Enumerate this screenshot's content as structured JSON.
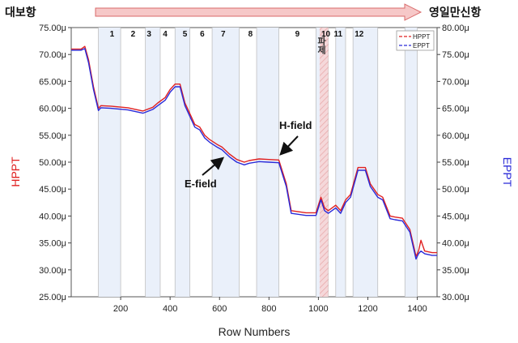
{
  "chart_data": {
    "type": "line",
    "xlabel": "Row Numbers",
    "ylabel_left": "HPPT",
    "ylabel_right": "EPPT",
    "xlim": [
      0,
      1480
    ],
    "x_ticks": [
      200,
      400,
      600,
      800,
      1000,
      1200,
      1400
    ],
    "ylim_left": [
      25,
      75
    ],
    "y_ticks_left": [
      "25.00μ",
      "30.00μ",
      "35.00μ",
      "40.00μ",
      "45.00μ",
      "50.00μ",
      "55.00μ",
      "60.00μ",
      "65.00μ",
      "70.00μ",
      "75.00μ"
    ],
    "ylim_right": [
      30,
      80
    ],
    "y_ticks_right": [
      "30.00μ",
      "35.00μ",
      "40.00μ",
      "45.00μ",
      "50.00μ",
      "55.00μ",
      "60.00μ",
      "65.00μ",
      "70.00μ",
      "75.00μ",
      "80.00μ"
    ],
    "colors": {
      "HPPT": "#e02020",
      "EPPT": "#2a2ad8",
      "section_band": "#eaf0fa",
      "section_line": "#c0c0c0",
      "highlight": "#f7c9c9"
    },
    "route": {
      "start": "대보항",
      "end": "영일만신항"
    },
    "section_labels": [
      "1",
      "2",
      "3",
      "4",
      "5",
      "6",
      "7",
      "8",
      "9",
      "10",
      "11",
      "12",
      "9"
    ],
    "legend": [
      "HPPT",
      "EPPT"
    ],
    "annotations": [
      {
        "text": "H-field"
      },
      {
        "text": "E-field"
      }
    ],
    "highlight_text": "파제",
    "series": [
      {
        "name": "HPPT",
        "x": [
          0,
          40,
          55,
          70,
          90,
          110,
          120,
          160,
          230,
          260,
          290,
          330,
          350,
          380,
          400,
          420,
          440,
          460,
          480,
          500,
          520,
          540,
          560,
          590,
          610,
          640,
          670,
          700,
          720,
          760,
          800,
          840,
          870,
          890,
          950,
          990,
          1010,
          1025,
          1040,
          1070,
          1090,
          1110,
          1130,
          1160,
          1190,
          1210,
          1240,
          1260,
          1290,
          1310,
          1340,
          1370,
          1395,
          1405,
          1415,
          1430,
          1460,
          1480
        ],
        "y": [
          71.0,
          71.0,
          71.5,
          69,
          64,
          60,
          60.5,
          60.4,
          60.1,
          59.8,
          59.5,
          60.2,
          61,
          62,
          63.5,
          64.5,
          64.5,
          61,
          59,
          57,
          56.5,
          55,
          54.2,
          53.3,
          52.8,
          51.5,
          50.5,
          50,
          50.3,
          50.6,
          50.5,
          50.4,
          46,
          41,
          40.6,
          40.6,
          43.5,
          41.5,
          41,
          42,
          41,
          43,
          44,
          49,
          49,
          46,
          44,
          43.5,
          40,
          39.8,
          39.6,
          37.5,
          32.5,
          33.5,
          35.5,
          33.5,
          33.2,
          33.2
        ]
      },
      {
        "name": "EPPT",
        "x": [
          0,
          40,
          55,
          70,
          90,
          110,
          120,
          160,
          230,
          260,
          290,
          330,
          350,
          380,
          400,
          420,
          440,
          460,
          480,
          500,
          520,
          540,
          560,
          590,
          610,
          640,
          670,
          700,
          720,
          760,
          800,
          840,
          870,
          890,
          950,
          990,
          1010,
          1025,
          1040,
          1070,
          1090,
          1110,
          1130,
          1160,
          1190,
          1210,
          1240,
          1260,
          1290,
          1310,
          1340,
          1370,
          1395,
          1405,
          1415,
          1430,
          1460,
          1480
        ],
        "y": [
          75.8,
          75.8,
          76.1,
          73.5,
          68.5,
          64.6,
          65.1,
          65.0,
          64.7,
          64.4,
          64.1,
          64.8,
          65.5,
          66.5,
          68.0,
          69.0,
          69.0,
          65.5,
          63.5,
          61.5,
          61.0,
          59.5,
          58.7,
          57.8,
          57.3,
          56.0,
          55.0,
          54.5,
          54.8,
          55.1,
          55.0,
          54.9,
          50.5,
          45.5,
          45.1,
          45.1,
          48.0,
          46.0,
          45.5,
          46.5,
          45.5,
          47.5,
          48.5,
          53.5,
          53.5,
          50.5,
          48.5,
          48.0,
          44.5,
          44.3,
          44.1,
          42.0,
          37.0,
          38.0,
          38.5,
          38.0,
          37.7,
          37.7
        ]
      }
    ]
  }
}
